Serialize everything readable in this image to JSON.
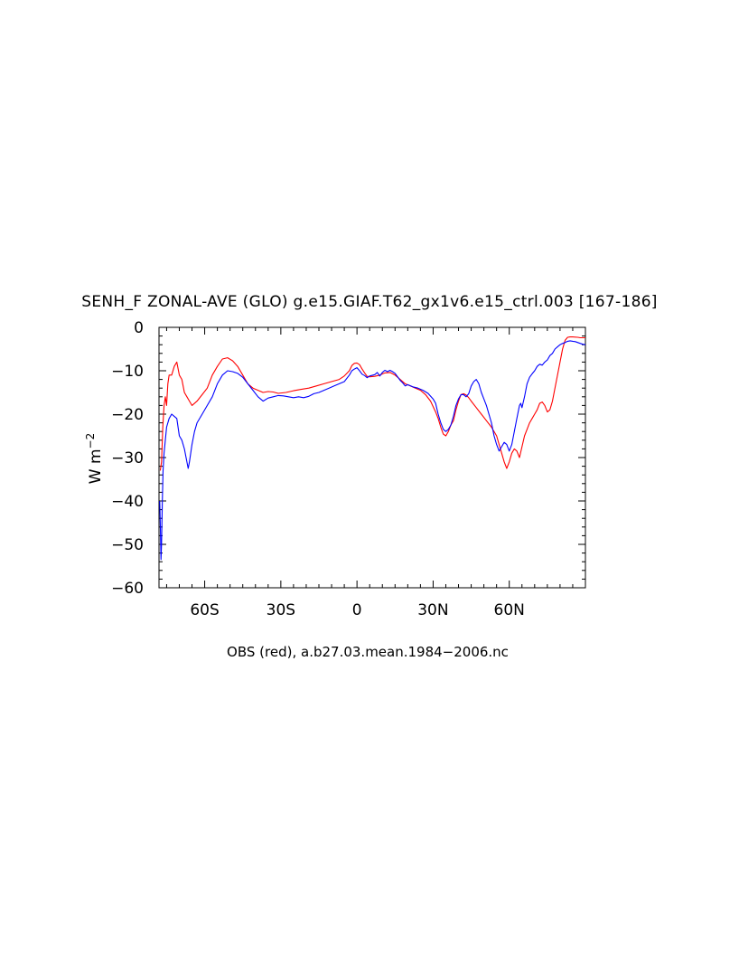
{
  "chart_data": {
    "type": "line",
    "title": "SENH_F ZONAL-AVE (GLO) g.e15.GIAF.T62_gx1v6.e15_ctrl.003 [167-186]",
    "ylabel": "W m",
    "ylabel_sup": "−2",
    "caption": "OBS (red), a.b27.03.mean.1984−2006.nc",
    "xlim": [
      -78,
      90
    ],
    "ylim": [
      -60,
      0
    ],
    "xticks": [
      {
        "value": -60,
        "label": "60S"
      },
      {
        "value": -30,
        "label": "30S"
      },
      {
        "value": 0,
        "label": "0"
      },
      {
        "value": 30,
        "label": "30N"
      },
      {
        "value": 60,
        "label": "60N"
      }
    ],
    "yticks": [
      {
        "value": 0,
        "label": "0"
      },
      {
        "value": -10,
        "label": "−10"
      },
      {
        "value": -20,
        "label": "−20"
      },
      {
        "value": -30,
        "label": "−30"
      },
      {
        "value": -40,
        "label": "−40"
      },
      {
        "value": -50,
        "label": "−50"
      },
      {
        "value": -60,
        "label": "−60"
      }
    ],
    "grid": false,
    "series": [
      {
        "color": "#ff0000",
        "points": [
          [
            -77.5,
            -33
          ],
          [
            -77,
            -31
          ],
          [
            -76.5,
            -23
          ],
          [
            -76,
            -18
          ],
          [
            -75.5,
            -16
          ],
          [
            -75,
            -18
          ],
          [
            -74.5,
            -13
          ],
          [
            -74,
            -11
          ],
          [
            -73,
            -11
          ],
          [
            -72,
            -9
          ],
          [
            -71,
            -8
          ],
          [
            -70,
            -11
          ],
          [
            -69,
            -12
          ],
          [
            -68,
            -15
          ],
          [
            -67,
            -16
          ],
          [
            -66,
            -17
          ],
          [
            -65,
            -18
          ],
          [
            -63,
            -17
          ],
          [
            -61,
            -15.5
          ],
          [
            -59,
            -14
          ],
          [
            -57,
            -11
          ],
          [
            -55,
            -9
          ],
          [
            -53,
            -7.3
          ],
          [
            -51,
            -7
          ],
          [
            -49,
            -7.7
          ],
          [
            -47,
            -9
          ],
          [
            -45,
            -11
          ],
          [
            -43,
            -13
          ],
          [
            -41,
            -14
          ],
          [
            -39,
            -14.5
          ],
          [
            -37,
            -15
          ],
          [
            -35,
            -14.8
          ],
          [
            -33,
            -14.9
          ],
          [
            -31,
            -15.2
          ],
          [
            -28,
            -15
          ],
          [
            -25,
            -14.6
          ],
          [
            -22,
            -14.3
          ],
          [
            -19,
            -14
          ],
          [
            -16,
            -13.5
          ],
          [
            -13,
            -13
          ],
          [
            -10,
            -12.5
          ],
          [
            -7,
            -12
          ],
          [
            -5,
            -11.2
          ],
          [
            -3,
            -10
          ],
          [
            -2,
            -8.8
          ],
          [
            -1,
            -8.3
          ],
          [
            0,
            -8.2
          ],
          [
            1,
            -8.6
          ],
          [
            2,
            -9.6
          ],
          [
            3,
            -10.5
          ],
          [
            4,
            -11.3
          ],
          [
            5,
            -11.4
          ],
          [
            7,
            -11.3
          ],
          [
            9,
            -11
          ],
          [
            11,
            -10.5
          ],
          [
            13,
            -10.4
          ],
          [
            15,
            -11
          ],
          [
            17,
            -12
          ],
          [
            19,
            -13
          ],
          [
            21,
            -13.5
          ],
          [
            23,
            -14
          ],
          [
            25,
            -14.5
          ],
          [
            27,
            -15.5
          ],
          [
            29,
            -17
          ],
          [
            31,
            -19.5
          ],
          [
            32,
            -21
          ],
          [
            33,
            -23
          ],
          [
            34,
            -24.6
          ],
          [
            35,
            -25
          ],
          [
            36,
            -24
          ],
          [
            37,
            -22.5
          ],
          [
            38,
            -21.5
          ],
          [
            39,
            -19
          ],
          [
            40,
            -17
          ],
          [
            41,
            -15.5
          ],
          [
            42,
            -15.3
          ],
          [
            43,
            -15.6
          ],
          [
            44,
            -16.2
          ],
          [
            45,
            -17
          ],
          [
            47,
            -18.5
          ],
          [
            49,
            -20
          ],
          [
            51,
            -21.5
          ],
          [
            53,
            -23
          ],
          [
            55,
            -25
          ],
          [
            56,
            -27
          ],
          [
            57,
            -29
          ],
          [
            58,
            -31
          ],
          [
            59,
            -32.5
          ],
          [
            60,
            -31
          ],
          [
            61,
            -29
          ],
          [
            62,
            -28
          ],
          [
            63,
            -28.5
          ],
          [
            64,
            -30
          ],
          [
            65,
            -27.5
          ],
          [
            66,
            -25
          ],
          [
            67,
            -23.5
          ],
          [
            68,
            -22
          ],
          [
            69,
            -21
          ],
          [
            70,
            -20
          ],
          [
            71,
            -19
          ],
          [
            72,
            -17.5
          ],
          [
            73,
            -17.2
          ],
          [
            74,
            -18
          ],
          [
            75,
            -19.5
          ],
          [
            76,
            -19
          ],
          [
            77,
            -17
          ],
          [
            78,
            -14
          ],
          [
            79,
            -11
          ],
          [
            80,
            -8
          ],
          [
            81,
            -5
          ],
          [
            82,
            -3
          ],
          [
            83,
            -2.3
          ],
          [
            84,
            -2.2
          ],
          [
            85,
            -2.2
          ],
          [
            87,
            -2.3
          ],
          [
            88,
            -2.4
          ],
          [
            90,
            -2.4
          ]
        ]
      },
      {
        "color": "#0000ff",
        "points": [
          [
            -77.7,
            -40
          ],
          [
            -77.4,
            -48
          ],
          [
            -77.2,
            -53.5
          ],
          [
            -77,
            -50
          ],
          [
            -76.7,
            -40
          ],
          [
            -76.4,
            -33
          ],
          [
            -76,
            -29
          ],
          [
            -75.5,
            -26
          ],
          [
            -75,
            -23
          ],
          [
            -74,
            -21
          ],
          [
            -73,
            -20
          ],
          [
            -72,
            -20.5
          ],
          [
            -71,
            -21
          ],
          [
            -70,
            -25
          ],
          [
            -69,
            -26
          ],
          [
            -68,
            -28
          ],
          [
            -67,
            -31
          ],
          [
            -66.5,
            -32.5
          ],
          [
            -66,
            -31
          ],
          [
            -65,
            -27
          ],
          [
            -64,
            -24
          ],
          [
            -63,
            -22
          ],
          [
            -61,
            -20
          ],
          [
            -59,
            -18
          ],
          [
            -57,
            -16
          ],
          [
            -55,
            -13
          ],
          [
            -53,
            -11
          ],
          [
            -51,
            -10
          ],
          [
            -49,
            -10.2
          ],
          [
            -47,
            -10.6
          ],
          [
            -45,
            -11.5
          ],
          [
            -43,
            -13
          ],
          [
            -41,
            -14.5
          ],
          [
            -39,
            -16
          ],
          [
            -37,
            -17
          ],
          [
            -35,
            -16.3
          ],
          [
            -33,
            -16
          ],
          [
            -31,
            -15.7
          ],
          [
            -29,
            -15.8
          ],
          [
            -27,
            -16
          ],
          [
            -25,
            -16.2
          ],
          [
            -23,
            -16
          ],
          [
            -21,
            -16.2
          ],
          [
            -19,
            -15.9
          ],
          [
            -17,
            -15.3
          ],
          [
            -15,
            -15
          ],
          [
            -13,
            -14.5
          ],
          [
            -11,
            -14
          ],
          [
            -9,
            -13.5
          ],
          [
            -7,
            -13
          ],
          [
            -5,
            -12.5
          ],
          [
            -3,
            -11
          ],
          [
            -2,
            -10
          ],
          [
            -1,
            -9.6
          ],
          [
            0,
            -9.3
          ],
          [
            1,
            -10
          ],
          [
            2,
            -10.8
          ],
          [
            3,
            -11.1
          ],
          [
            4,
            -11.6
          ],
          [
            5,
            -11.2
          ],
          [
            7,
            -10.9
          ],
          [
            8,
            -10.4
          ],
          [
            9,
            -11.2
          ],
          [
            10,
            -10.4
          ],
          [
            11,
            -9.9
          ],
          [
            12,
            -10.2
          ],
          [
            13,
            -9.9
          ],
          [
            14,
            -10.2
          ],
          [
            15,
            -10.6
          ],
          [
            16,
            -11.4
          ],
          [
            17,
            -12.2
          ],
          [
            18,
            -12.8
          ],
          [
            19,
            -13.5
          ],
          [
            20,
            -13.2
          ],
          [
            22,
            -13.7
          ],
          [
            24,
            -14
          ],
          [
            26,
            -14.5
          ],
          [
            28,
            -15.2
          ],
          [
            30,
            -16.5
          ],
          [
            31,
            -17.5
          ],
          [
            32,
            -20
          ],
          [
            33,
            -22
          ],
          [
            34,
            -23.5
          ],
          [
            35,
            -24
          ],
          [
            36,
            -23.5
          ],
          [
            37,
            -22.5
          ],
          [
            38,
            -20.5
          ],
          [
            39,
            -18
          ],
          [
            40,
            -16.5
          ],
          [
            41,
            -15.5
          ],
          [
            42,
            -15.5
          ],
          [
            43,
            -16
          ],
          [
            44,
            -15.3
          ],
          [
            45,
            -13.5
          ],
          [
            46,
            -12.5
          ],
          [
            47,
            -12
          ],
          [
            48,
            -13
          ],
          [
            49,
            -15
          ],
          [
            50,
            -16.5
          ],
          [
            51,
            -18
          ],
          [
            52,
            -20
          ],
          [
            53,
            -22
          ],
          [
            54,
            -25
          ],
          [
            55,
            -27
          ],
          [
            56,
            -28.5
          ],
          [
            57,
            -27.5
          ],
          [
            58,
            -26.5
          ],
          [
            59,
            -27
          ],
          [
            60,
            -28.5
          ],
          [
            61,
            -27
          ],
          [
            62,
            -24
          ],
          [
            63,
            -21
          ],
          [
            64,
            -18
          ],
          [
            64.5,
            -17.5
          ],
          [
            65,
            -18.5
          ],
          [
            66,
            -16
          ],
          [
            67,
            -13
          ],
          [
            68,
            -11.5
          ],
          [
            69,
            -10.7
          ],
          [
            70,
            -10
          ],
          [
            71,
            -9
          ],
          [
            72,
            -8.5
          ],
          [
            73,
            -8.7
          ],
          [
            74,
            -8
          ],
          [
            75,
            -7.5
          ],
          [
            76,
            -6.5
          ],
          [
            77,
            -6
          ],
          [
            78,
            -5
          ],
          [
            79,
            -4.5
          ],
          [
            80,
            -4
          ],
          [
            81,
            -3.7
          ],
          [
            82,
            -3.5
          ],
          [
            83,
            -3.2
          ],
          [
            84,
            -3.1
          ],
          [
            85,
            -3.2
          ],
          [
            86,
            -3.3
          ],
          [
            87,
            -3.5
          ],
          [
            88,
            -3.7
          ],
          [
            89,
            -3.9
          ],
          [
            90,
            -4.0
          ]
        ]
      }
    ]
  }
}
